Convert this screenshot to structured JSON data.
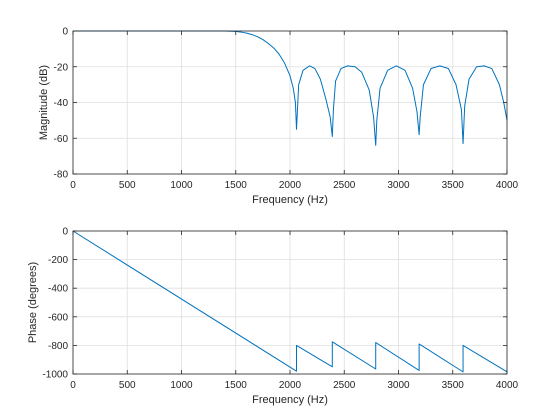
{
  "colors": {
    "line": "#0072bd",
    "grid": "#dfdfdf",
    "axis": "#262626",
    "background": "#ffffff"
  },
  "chart_data": [
    {
      "type": "line",
      "title": "",
      "xlabel": "Frequency (Hz)",
      "ylabel": "Magnitude (dB)",
      "xlim": [
        0,
        4000
      ],
      "ylim": [
        -80,
        0
      ],
      "xticks": [
        0,
        500,
        1000,
        1500,
        2000,
        2500,
        3000,
        3500,
        4000
      ],
      "yticks": [
        -80,
        -60,
        -40,
        -20,
        0
      ],
      "grid": true,
      "series": [
        {
          "x": [
            0,
            500,
            1000,
            1400,
            1500,
            1550,
            1600,
            1650,
            1700,
            1750,
            1800,
            1850,
            1900,
            1950,
            2000,
            2030,
            2050,
            2060,
            2080,
            2120,
            2180,
            2230,
            2280,
            2330,
            2370,
            2390,
            2400,
            2420,
            2470,
            2530,
            2600,
            2660,
            2730,
            2770,
            2790,
            2800,
            2830,
            2900,
            2980,
            3060,
            3130,
            3170,
            3190,
            3200,
            3230,
            3300,
            3380,
            3460,
            3530,
            3580,
            3595,
            3610,
            3650,
            3720,
            3790,
            3860,
            3930,
            3970,
            4000
          ],
          "y": [
            0,
            0,
            0,
            0,
            -0.2,
            -0.6,
            -1.2,
            -2,
            -3.2,
            -4.8,
            -7,
            -9.5,
            -13,
            -18,
            -25,
            -32,
            -40,
            -55,
            -30,
            -22,
            -19.5,
            -21,
            -27,
            -38,
            -48,
            -59,
            -44,
            -28,
            -21,
            -19.5,
            -20,
            -23,
            -33,
            -48,
            -64,
            -50,
            -32,
            -22,
            -19.5,
            -22,
            -32,
            -45,
            -58,
            -48,
            -30,
            -21,
            -19.5,
            -21,
            -30,
            -44,
            -63,
            -42,
            -27,
            -20,
            -19.5,
            -21,
            -30,
            -40,
            -50
          ]
        }
      ]
    },
    {
      "type": "line",
      "title": "",
      "xlabel": "Frequency (Hz)",
      "ylabel": "Phase (degrees)",
      "xlim": [
        0,
        4000
      ],
      "ylim": [
        -1000,
        0
      ],
      "xticks": [
        0,
        500,
        1000,
        1500,
        2000,
        2500,
        3000,
        3500,
        4000
      ],
      "yticks": [
        -1000,
        -800,
        -600,
        -400,
        -200,
        0
      ],
      "grid": true,
      "series": [
        {
          "x": [
            0,
            2060,
            2060,
            2390,
            2390,
            2790,
            2790,
            3190,
            3190,
            3595,
            3595,
            4000
          ],
          "y": [
            0,
            -980,
            -800,
            -950,
            -775,
            -965,
            -780,
            -975,
            -790,
            -985,
            -800,
            -985
          ]
        }
      ]
    }
  ]
}
